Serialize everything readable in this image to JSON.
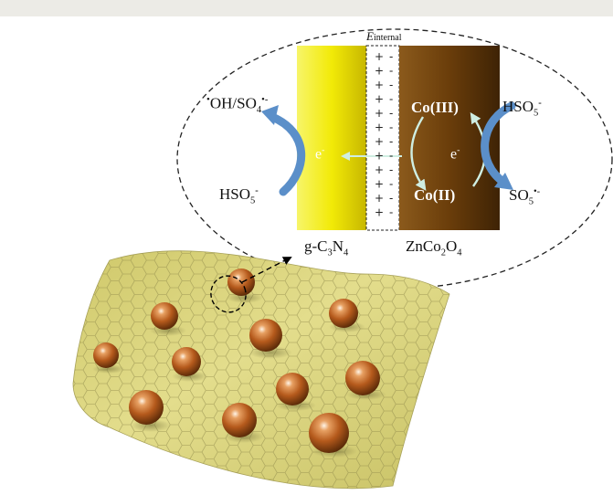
{
  "field": {
    "base": "E",
    "sub": "internal"
  },
  "species": {
    "radical_left_dot": "•",
    "radical_left": "OH/SO",
    "radical_left_sub": "4",
    "radical_left_sup": "•-",
    "hso5_left": "HSO",
    "hso5_left_sub": "5",
    "hso5_left_sup": "-",
    "hso5_right": "HSO",
    "hso5_right_sub": "5",
    "hso5_right_sup": "-",
    "so5": "SO",
    "so5_sub": "5",
    "so5_sup": "•-"
  },
  "electrons": {
    "left": "e",
    "left_sup": "-",
    "right": "e",
    "right_sup": "-"
  },
  "cobalt": {
    "upper": "Co(III)",
    "lower": "Co(II)"
  },
  "materials": {
    "left_a": "g-C",
    "left_sub1": "3",
    "left_b": "N",
    "left_sub2": "4",
    "right_a": "ZnCo",
    "right_sub1": "2",
    "right_b": "O",
    "right_sub2": "4"
  },
  "junction_symbols": {
    "plus": "+",
    "minus": "-"
  },
  "colors": {
    "gc3n4_yellow": "#f4ee10",
    "znco2o4_brown": "#6b3f0c",
    "sheet": "#d8d27a",
    "sphere": "#b25a1a",
    "arrow_blue": "#5b8fc9",
    "arrow_pale": "#bfe3d6"
  }
}
